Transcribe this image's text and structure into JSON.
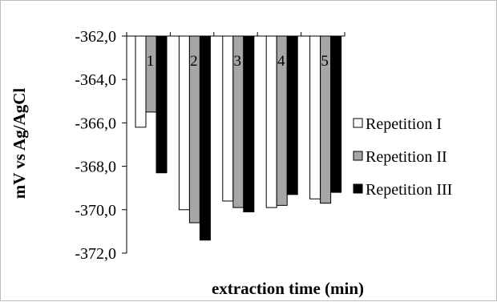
{
  "chart_data": {
    "type": "bar",
    "title": "",
    "xlabel": "extraction time (min)",
    "ylabel": "mV vs Ag/AgCl",
    "categories": [
      "1",
      "2",
      "3",
      "4",
      "5"
    ],
    "ylim": [
      -372.0,
      -362.0
    ],
    "yticks": [
      "-362,0",
      "-364,0",
      "-366,0",
      "-368,0",
      "-370,0",
      "-372,0"
    ],
    "grid": false,
    "legend_position": "right",
    "series": [
      {
        "name": "Repetition I",
        "color": "#ffffff",
        "values": [
          -366.2,
          -370.0,
          -369.6,
          -369.9,
          -369.5
        ]
      },
      {
        "name": "Repetition II",
        "color": "#a6a6a6",
        "values": [
          -365.5,
          -370.6,
          -369.9,
          -369.8,
          -369.7
        ]
      },
      {
        "name": "Repetition III",
        "color": "#000000",
        "values": [
          -368.3,
          -371.4,
          -370.1,
          -369.3,
          -369.2
        ]
      }
    ]
  }
}
